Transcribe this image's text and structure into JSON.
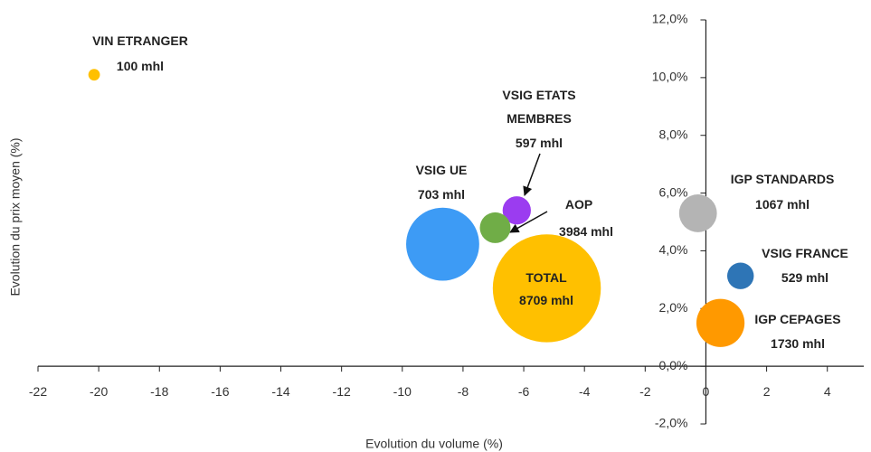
{
  "chart_data": {
    "type": "bubble",
    "x_label": "Evolution du volume (%)",
    "y_label": "Evolution du prix moyen (%)",
    "xlim": [
      -22,
      5.2
    ],
    "xticks": [
      -22,
      -20,
      -18,
      -16,
      -14,
      -12,
      -10,
      -8,
      -6,
      -4,
      -2,
      0,
      2,
      4
    ],
    "ylim": [
      -2,
      12
    ],
    "yticks": [
      {
        "value": -2,
        "label": "-2,0%"
      },
      {
        "value": 0,
        "label": "0,0%"
      },
      {
        "value": 2,
        "label": "2,0%"
      },
      {
        "value": 4,
        "label": "4,0%"
      },
      {
        "value": 6,
        "label": "6,0%"
      },
      {
        "value": 8,
        "label": "8,0%"
      },
      {
        "value": 10,
        "label": "10,0%"
      },
      {
        "value": 12,
        "label": "12,0%"
      }
    ],
    "series": [
      {
        "name": "VIN ETRANGER",
        "color": "#ffc000",
        "x": [
          -20.15
        ],
        "values": [
          10.1
        ],
        "sizes": [
          100
        ],
        "value_labels": [
          "100 mhl"
        ]
      },
      {
        "name": "VSIG ETATS MEMBRES",
        "color": "#9b3cf0",
        "x": [
          -6.23
        ],
        "values": [
          5.4
        ],
        "sizes": [
          597
        ],
        "value_labels": [
          "597 mhl"
        ]
      },
      {
        "name": "VSIG UE",
        "color": "#70ad47",
        "x": [
          -6.94
        ],
        "values": [
          4.8
        ],
        "sizes": [
          703
        ],
        "value_labels": [
          "703 mhl"
        ]
      },
      {
        "name": "AOP",
        "color": "#3d9bf5",
        "x": [
          -8.67
        ],
        "values": [
          4.23
        ],
        "sizes": [
          3984
        ],
        "value_labels": [
          "3984 mhl"
        ]
      },
      {
        "name": "TOTAL",
        "color": "#ffc000",
        "x": [
          -5.24
        ],
        "values": [
          2.7
        ],
        "sizes": [
          8709
        ],
        "value_labels": [
          "8709 mhl"
        ]
      },
      {
        "name": "IGP STANDARDS",
        "color": "#b4b4b4",
        "x": [
          -0.26
        ],
        "values": [
          5.3
        ],
        "sizes": [
          1067
        ],
        "value_labels": [
          "1067 mhl"
        ]
      },
      {
        "name": "VSIG FRANCE",
        "color": "#2e75b6",
        "x": [
          1.14
        ],
        "values": [
          3.13
        ],
        "sizes": [
          529
        ],
        "value_labels": [
          "529 mhl"
        ]
      },
      {
        "name": "IGP CEPAGES",
        "color": "#ff9900",
        "x": [
          0.48
        ],
        "values": [
          1.5
        ],
        "sizes": [
          1730
        ],
        "value_labels": [
          "1730 mhl"
        ]
      }
    ]
  }
}
